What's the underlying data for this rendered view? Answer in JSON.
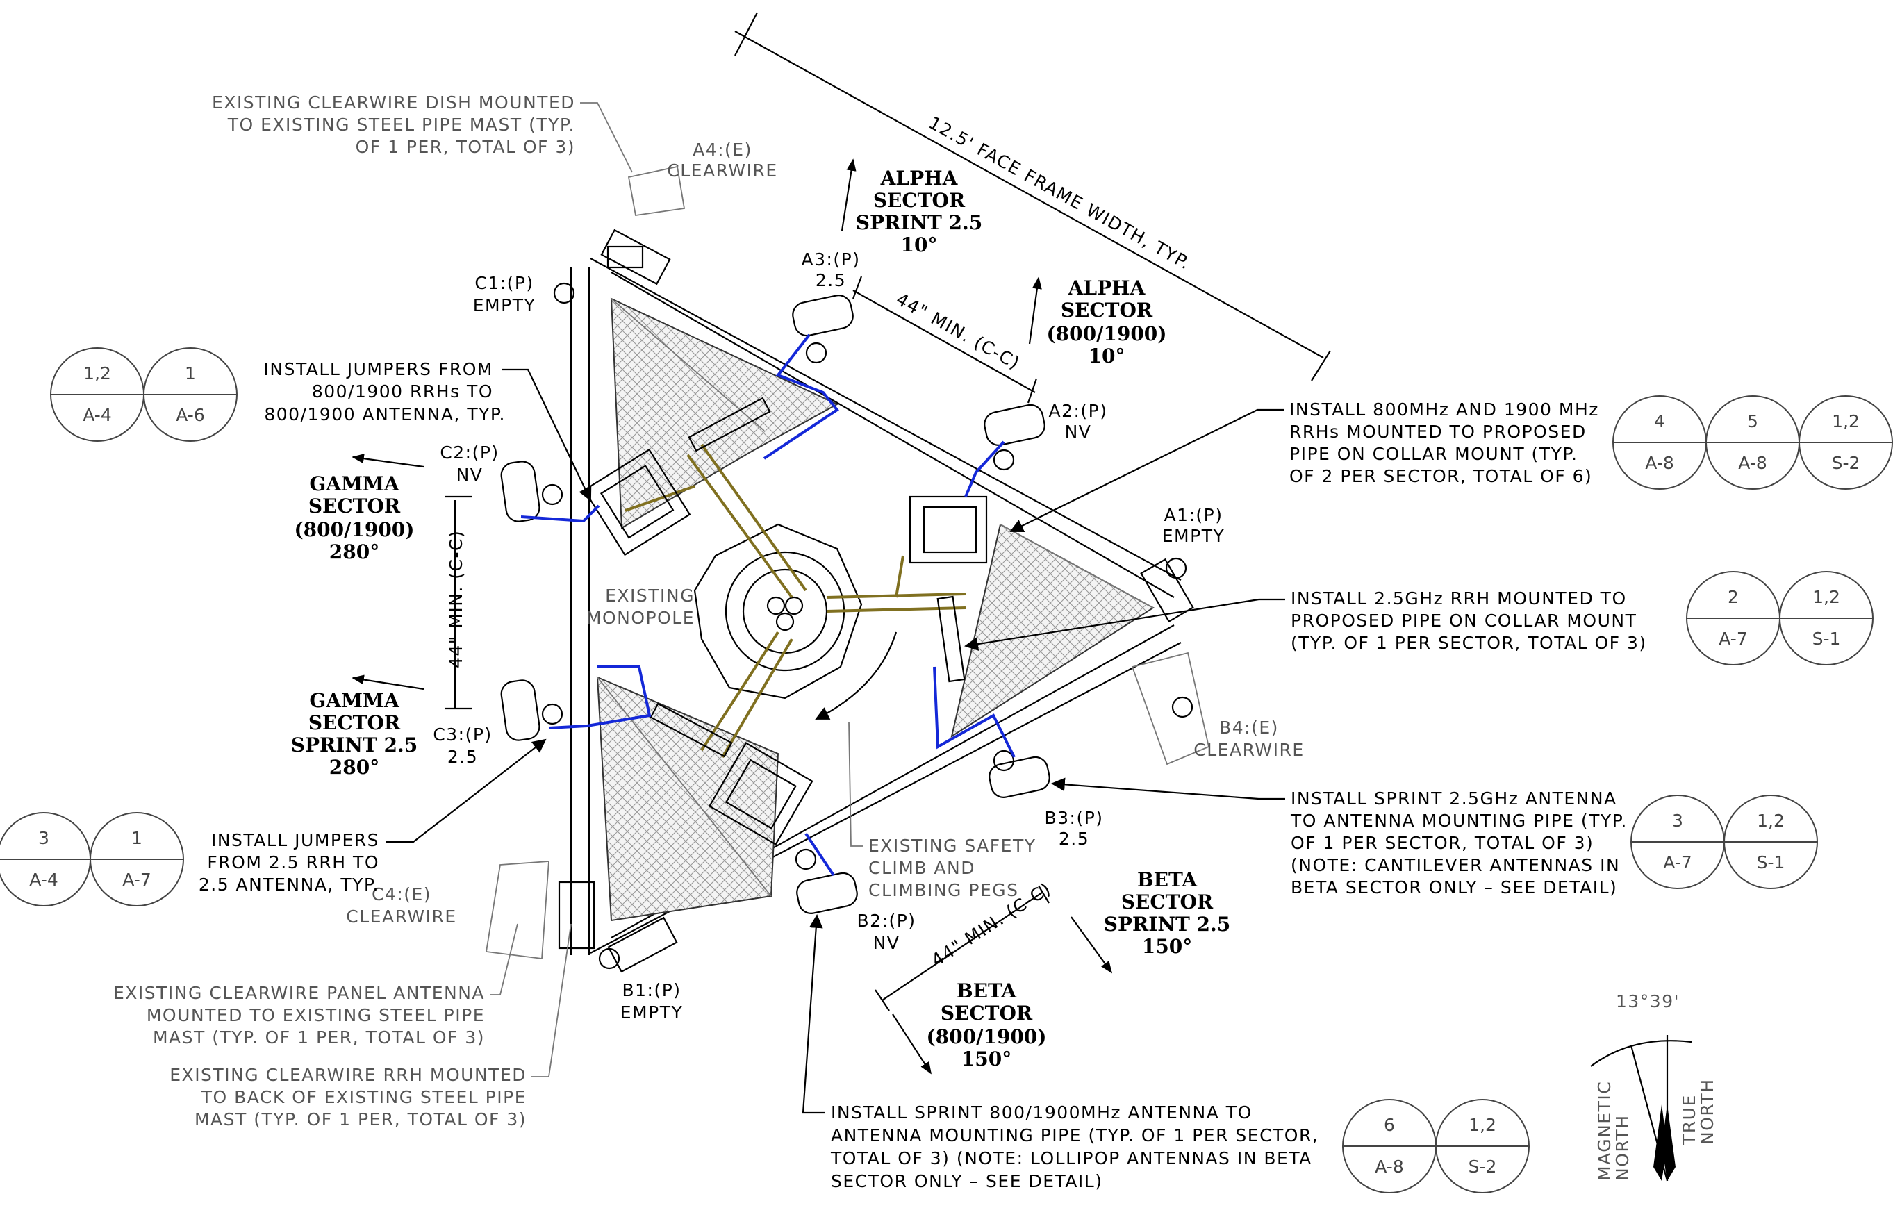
{
  "notes": {
    "clearwire_dish": [
      "EXISTING CLEARWIRE DISH MOUNTED",
      "TO EXISTING STEEL PIPE MAST (TYP.",
      "OF 1 PER, TOTAL OF 3)"
    ],
    "jumpers_800": [
      "INSTALL JUMPERS FROM",
      "800/1900 RRHs TO",
      "800/1900 ANTENNA, TYP."
    ],
    "jumpers_25": [
      "INSTALL JUMPERS",
      "FROM 2.5 RRH TO",
      "2.5 ANTENNA, TYP."
    ],
    "clearwire_panel": [
      "EXISTING CLEARWIRE PANEL ANTENNA",
      "MOUNTED TO EXISTING STEEL PIPE",
      "MAST (TYP. OF 1 PER, TOTAL OF 3)"
    ],
    "clearwire_rrh": [
      "EXISTING CLEARWIRE RRH MOUNTED",
      "TO BACK OF EXISTING STEEL PIPE",
      "MAST (TYP. OF 1 PER, TOTAL OF 3)"
    ],
    "rrh_800_1900": [
      "INSTALL 800MHz AND 1900 MHz",
      "RRHs MOUNTED TO PROPOSED",
      "PIPE ON COLLAR MOUNT (TYP.",
      "OF 2 PER SECTOR, TOTAL OF 6)"
    ],
    "rrh_25": [
      "INSTALL 2.5GHz RRH MOUNTED TO",
      "PROPOSED PIPE ON COLLAR MOUNT",
      "(TYP. OF 1 PER SECTOR, TOTAL OF 3)"
    ],
    "sprint_25_ant": [
      "INSTALL SPRINT 2.5GHz ANTENNA",
      "TO ANTENNA MOUNTING PIPE (TYP.",
      "OF 1 PER SECTOR, TOTAL OF 3)",
      "(NOTE: CANTILEVER ANTENNAS IN",
      "BETA SECTOR ONLY – SEE DETAIL)"
    ],
    "sprint_800_ant": [
      "INSTALL SPRINT 800/1900MHz ANTENNA TO",
      "ANTENNA MOUNTING PIPE (TYP. OF 1 PER SECTOR,",
      "TOTAL OF 3) (NOTE: LOLLIPOP ANTENNAS IN BETA",
      "SECTOR ONLY – SEE DETAIL)"
    ],
    "safety_climb": [
      "EXISTING SAFETY",
      "CLIMB AND",
      "CLIMBING PEGS"
    ],
    "monopole": [
      "EXISTING",
      "MONOPOLE"
    ]
  },
  "positions": {
    "A4": [
      "A4:(E)",
      "CLEARWIRE"
    ],
    "A3": [
      "A3:(P)",
      "2.5"
    ],
    "A2": [
      "A2:(P)",
      "NV"
    ],
    "A1": [
      "A1:(P)",
      "EMPTY"
    ],
    "B4": [
      "B4:(E)",
      "CLEARWIRE"
    ],
    "B3": [
      "B3:(P)",
      "2.5"
    ],
    "B2": [
      "B2:(P)",
      "NV"
    ],
    "B1": [
      "B1:(P)",
      "EMPTY"
    ],
    "C4": [
      "C4:(E)",
      "CLEARWIRE"
    ],
    "C3": [
      "C3:(P)",
      "2.5"
    ],
    "C2": [
      "C2:(P)",
      "NV"
    ],
    "C1": [
      "C1:(P)",
      "EMPTY"
    ]
  },
  "sectors": {
    "alpha_25": [
      "ALPHA",
      "SECTOR",
      "SPRINT 2.5",
      "10°"
    ],
    "alpha_800": [
      "ALPHA",
      "SECTOR",
      "(800/1900)",
      "10°"
    ],
    "gamma_800": [
      "GAMMA",
      "SECTOR",
      "(800/1900)",
      "280°"
    ],
    "gamma_25": [
      "GAMMA",
      "SECTOR",
      "SPRINT 2.5",
      "280°"
    ],
    "beta_25": [
      "BETA",
      "SECTOR",
      "SPRINT 2.5",
      "150°"
    ],
    "beta_800": [
      "BETA",
      "SECTOR",
      "(800/1900)",
      "150°"
    ]
  },
  "dimensions": {
    "face_width": "12.5' FACE FRAME WIDTH, TYP.",
    "min_cc": "44\" MIN. (C-C)"
  },
  "detail_refs": {
    "r1": [
      {
        "top": "1,2",
        "bottom": "A-4"
      },
      {
        "top": "1",
        "bottom": "A-6"
      }
    ],
    "r2": [
      {
        "top": "4",
        "bottom": "A-8"
      },
      {
        "top": "5",
        "bottom": "A-8"
      },
      {
        "top": "1,2",
        "bottom": "S-2"
      }
    ],
    "r3": [
      {
        "top": "2",
        "bottom": "A-7"
      },
      {
        "top": "1,2",
        "bottom": "S-1"
      }
    ],
    "r4": [
      {
        "top": "3",
        "bottom": "A-4"
      },
      {
        "top": "1",
        "bottom": "A-7"
      }
    ],
    "r5": [
      {
        "top": "3",
        "bottom": "A-7"
      },
      {
        "top": "1,2",
        "bottom": "S-1"
      }
    ],
    "r6": [
      {
        "top": "6",
        "bottom": "A-8"
      },
      {
        "top": "1,2",
        "bottom": "S-2"
      }
    ]
  },
  "north": {
    "declination": "13°39'",
    "true_north": [
      "TRUE",
      "NORTH"
    ],
    "magnetic_north": [
      "MAGNETIC",
      "NORTH"
    ]
  }
}
